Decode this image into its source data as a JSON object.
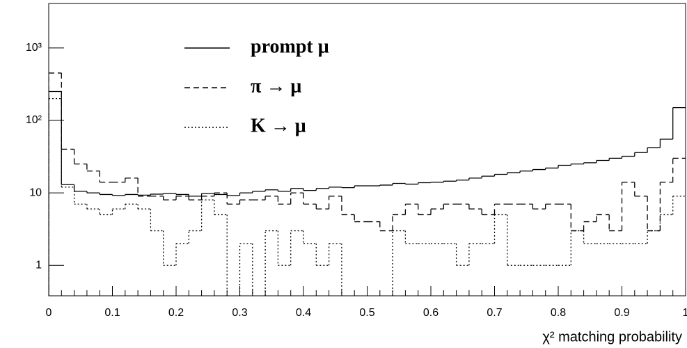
{
  "chart_data": {
    "type": "histogram",
    "x_label": "χ² matching probability",
    "bins": [
      0,
      0.02,
      0.04,
      0.06,
      0.08,
      0.1,
      0.12,
      0.14,
      0.16,
      0.18,
      0.2,
      0.22,
      0.24,
      0.26,
      0.28,
      0.3,
      0.32,
      0.34,
      0.36,
      0.38,
      0.4,
      0.42,
      0.44,
      0.46,
      0.48,
      0.5,
      0.52,
      0.54,
      0.56,
      0.58,
      0.6,
      0.62,
      0.64,
      0.66,
      0.68,
      0.7,
      0.72,
      0.74,
      0.76,
      0.78,
      0.8,
      0.82,
      0.84,
      0.86,
      0.88,
      0.9,
      0.92,
      0.94,
      0.96,
      0.98,
      1
    ],
    "series": [
      {
        "name": "prompt μ",
        "color": "#000000",
        "linestyle": "solid",
        "values": [
          250,
          13,
          10.5,
          10,
          9.5,
          9.2,
          9.5,
          9.3,
          9.6,
          9.8,
          9.5,
          9,
          9.8,
          9.5,
          9.2,
          10,
          10.5,
          11,
          10.5,
          11.5,
          10.8,
          11.5,
          12,
          11.8,
          12.5,
          12.5,
          12.8,
          13.5,
          13.2,
          13.8,
          14,
          14.5,
          15,
          16,
          17,
          18,
          19,
          20,
          21,
          22,
          24,
          25,
          26,
          28,
          30,
          32,
          36,
          42,
          55,
          150
        ]
      },
      {
        "name": "π → μ",
        "color": "#000000",
        "linestyle": "dashed",
        "values": [
          450,
          40,
          25,
          20,
          14,
          14,
          16,
          9,
          9,
          8,
          9,
          8,
          9,
          10,
          7,
          8,
          8,
          9,
          7,
          10,
          7,
          6,
          9,
          5,
          4,
          4,
          3,
          5,
          7,
          5,
          6,
          7,
          7,
          6,
          5,
          7,
          7,
          7,
          6,
          7,
          7,
          3,
          4,
          5,
          3,
          14,
          9,
          3,
          14,
          30
        ]
      },
      {
        "name": "K → μ",
        "color": "#000000",
        "linestyle": "dotted",
        "values": [
          200,
          12,
          7,
          6,
          5,
          6,
          7,
          6,
          3,
          1,
          2,
          3,
          8,
          5,
          0,
          2,
          0,
          3,
          1,
          3,
          2,
          1,
          2,
          0,
          0,
          0,
          0,
          3,
          2,
          2,
          2,
          2,
          1,
          2,
          2,
          5,
          1,
          1,
          1,
          1,
          1,
          3,
          2,
          2,
          2,
          2,
          2,
          3,
          5,
          9
        ]
      }
    ],
    "xlim": [
      0,
      1
    ],
    "xticks": [
      0,
      0.1,
      0.2,
      0.3,
      0.4,
      0.5,
      0.6,
      0.7,
      0.8,
      0.9,
      1
    ],
    "ylim": [
      0.38,
      4100
    ],
    "log_y": true,
    "yticks": [
      1,
      10,
      {
        "value": 100,
        "label": "10²"
      },
      {
        "value": 1000,
        "label": "10³"
      }
    ],
    "grid": false,
    "legend": "top"
  }
}
